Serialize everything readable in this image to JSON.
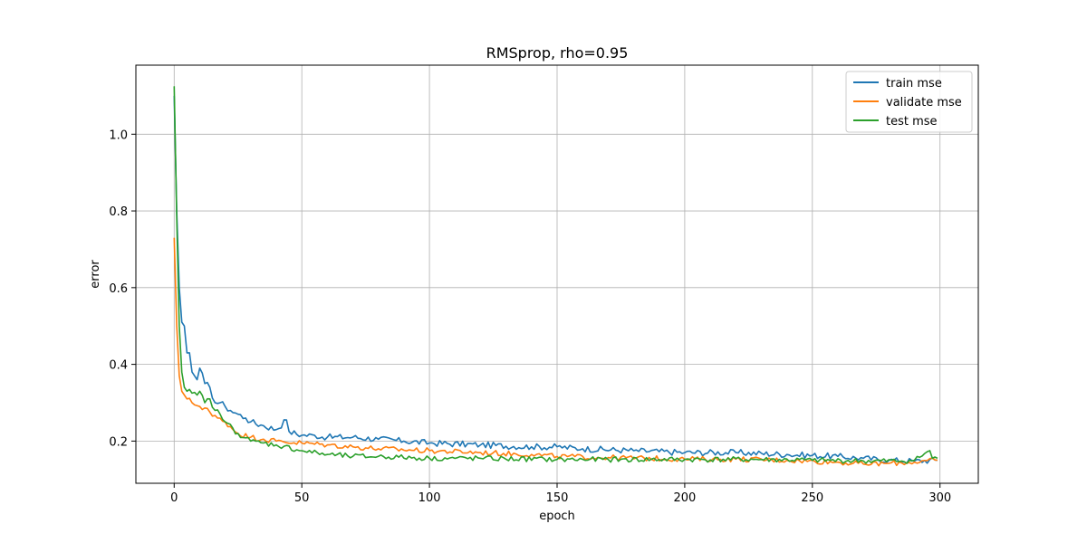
{
  "chart_data": {
    "type": "line",
    "title": "RMSprop, rho=0.95",
    "xlabel": "epoch",
    "ylabel": "error",
    "xlim": [
      -15,
      315
    ],
    "ylim": [
      0.09,
      1.18
    ],
    "xticks": [
      0,
      50,
      100,
      150,
      200,
      250,
      300
    ],
    "yticks": [
      0.2,
      0.4,
      0.6,
      0.8,
      1.0
    ],
    "ytick_labels": [
      "0.2",
      "0.4",
      "0.6",
      "0.8",
      "1.0"
    ],
    "grid": true,
    "legend_position": "top-right",
    "series": [
      {
        "name": "train mse",
        "color": "#1f77b4",
        "anchors": [
          [
            0,
            1.1
          ],
          [
            1,
            0.8
          ],
          [
            2,
            0.6
          ],
          [
            3,
            0.51
          ],
          [
            4,
            0.5
          ],
          [
            5,
            0.43
          ],
          [
            6,
            0.43
          ],
          [
            7,
            0.38
          ],
          [
            8,
            0.37
          ],
          [
            9,
            0.36
          ],
          [
            10,
            0.39
          ],
          [
            12,
            0.35
          ],
          [
            14,
            0.34
          ],
          [
            16,
            0.3
          ],
          [
            18,
            0.3
          ],
          [
            20,
            0.29
          ],
          [
            22,
            0.28
          ],
          [
            25,
            0.27
          ],
          [
            28,
            0.26
          ],
          [
            30,
            0.25
          ],
          [
            35,
            0.24
          ],
          [
            40,
            0.23
          ],
          [
            44,
            0.255
          ],
          [
            45,
            0.225
          ],
          [
            50,
            0.215
          ],
          [
            55,
            0.215
          ],
          [
            60,
            0.21
          ],
          [
            70,
            0.21
          ],
          [
            80,
            0.205
          ],
          [
            90,
            0.2
          ],
          [
            100,
            0.195
          ],
          [
            120,
            0.19
          ],
          [
            140,
            0.185
          ],
          [
            150,
            0.185
          ],
          [
            160,
            0.18
          ],
          [
            180,
            0.175
          ],
          [
            200,
            0.17
          ],
          [
            220,
            0.17
          ],
          [
            240,
            0.165
          ],
          [
            260,
            0.16
          ],
          [
            270,
            0.155
          ],
          [
            280,
            0.15
          ],
          [
            290,
            0.148
          ],
          [
            299,
            0.15
          ]
        ],
        "noise": 0.007
      },
      {
        "name": "validate mse",
        "color": "#ff7f0e",
        "anchors": [
          [
            0,
            0.73
          ],
          [
            1,
            0.5
          ],
          [
            2,
            0.37
          ],
          [
            3,
            0.33
          ],
          [
            4,
            0.32
          ],
          [
            5,
            0.31
          ],
          [
            7,
            0.3
          ],
          [
            10,
            0.29
          ],
          [
            13,
            0.285
          ],
          [
            15,
            0.265
          ],
          [
            20,
            0.25
          ],
          [
            25,
            0.22
          ],
          [
            30,
            0.21
          ],
          [
            35,
            0.205
          ],
          [
            40,
            0.2
          ],
          [
            50,
            0.195
          ],
          [
            60,
            0.19
          ],
          [
            70,
            0.185
          ],
          [
            80,
            0.18
          ],
          [
            100,
            0.175
          ],
          [
            120,
            0.17
          ],
          [
            140,
            0.165
          ],
          [
            150,
            0.16
          ],
          [
            170,
            0.157
          ],
          [
            200,
            0.153
          ],
          [
            220,
            0.153
          ],
          [
            240,
            0.15
          ],
          [
            260,
            0.145
          ],
          [
            270,
            0.14
          ],
          [
            280,
            0.142
          ],
          [
            290,
            0.145
          ],
          [
            299,
            0.15
          ]
        ],
        "noise": 0.006
      },
      {
        "name": "test mse",
        "color": "#2ca02c",
        "anchors": [
          [
            0,
            1.125
          ],
          [
            1,
            0.78
          ],
          [
            2,
            0.5
          ],
          [
            3,
            0.38
          ],
          [
            4,
            0.34
          ],
          [
            5,
            0.33
          ],
          [
            7,
            0.325
          ],
          [
            9,
            0.32
          ],
          [
            10,
            0.33
          ],
          [
            12,
            0.3
          ],
          [
            14,
            0.31
          ],
          [
            16,
            0.28
          ],
          [
            18,
            0.27
          ],
          [
            20,
            0.25
          ],
          [
            25,
            0.22
          ],
          [
            30,
            0.2
          ],
          [
            35,
            0.195
          ],
          [
            40,
            0.19
          ],
          [
            50,
            0.175
          ],
          [
            60,
            0.165
          ],
          [
            70,
            0.16
          ],
          [
            80,
            0.16
          ],
          [
            100,
            0.155
          ],
          [
            120,
            0.155
          ],
          [
            150,
            0.152
          ],
          [
            170,
            0.152
          ],
          [
            200,
            0.152
          ],
          [
            230,
            0.152
          ],
          [
            250,
            0.15
          ],
          [
            270,
            0.148
          ],
          [
            285,
            0.148
          ],
          [
            290,
            0.15
          ],
          [
            296,
            0.175
          ],
          [
            297,
            0.155
          ],
          [
            299,
            0.155
          ]
        ],
        "noise": 0.006
      }
    ]
  }
}
